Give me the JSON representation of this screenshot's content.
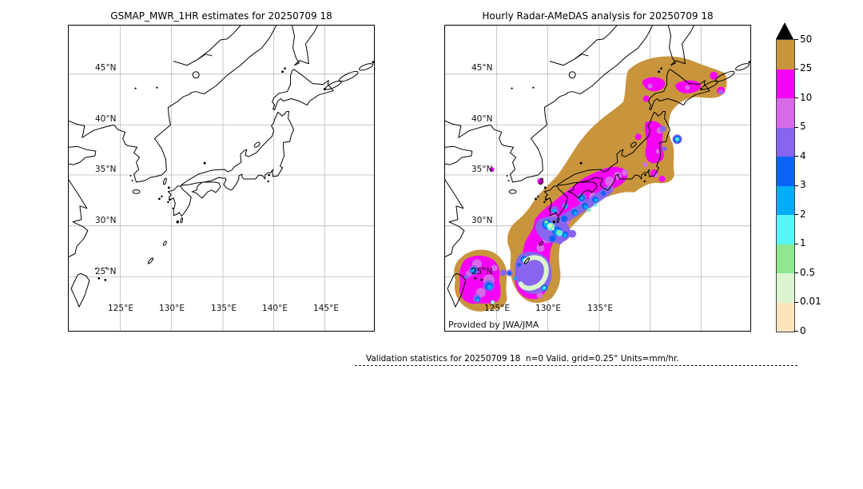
{
  "figure": {
    "background": "#ffffff",
    "grid_color": "#b9b9b9",
    "coast_color": "#000000",
    "left_panel": {
      "title": "GSMAP_MWR_1HR estimates for 20250709 18",
      "lat_labels": [
        "45°N",
        "40°N",
        "35°N",
        "30°N",
        "25°N"
      ],
      "lon_labels": [
        "125°E",
        "130°E",
        "135°E",
        "140°E",
        "145°E"
      ]
    },
    "right_panel": {
      "title": "Hourly Radar-AMeDAS analysis for 20250709 18",
      "lat_labels": [
        "45°N",
        "40°N",
        "35°N",
        "30°N",
        "25°N"
      ],
      "lon_labels": [
        "125°E",
        "130°E",
        "135°E"
      ],
      "credit": "Provided by JWA/JMA"
    },
    "colorbar": {
      "tick_labels": [
        "50",
        "25",
        "10",
        "5",
        "4",
        "3",
        "2",
        "1",
        "0.5",
        "0.01",
        "0"
      ],
      "segment_colors_top_to_bottom": [
        "#c8953d",
        "#f603f6",
        "#d76ae8",
        "#8765ee",
        "#0a62f7",
        "#00adf8",
        "#59f5f5",
        "#8fe88f",
        "#dcf5d0",
        "#fce5bd"
      ],
      "overflow_arrow_color": "#000000"
    },
    "caption": "Validation statistics for 20250709 18  n=0 Valid. grid=0.25° Units=mm/hr."
  },
  "chart_data": {
    "type": "heatmap",
    "description": "Two map panels over Japan region (approx 120-150E, 20-50N) comparing hourly precipitation fields for 2025-07-09 18 UTC",
    "panels": [
      {
        "title": "GSMAP_MWR_1HR estimates for 20250709 18",
        "field": "empty - no precipitation plotted"
      },
      {
        "title": "Hourly Radar-AMeDAS analysis for 20250709 18",
        "field": "widespread light precipitation 0-0.5 mm/hr over Hokkaido, Honshu, Kyushu; cells of 1-10 mm/hr from Shikoku southwest through Kyushu to Okinawa; magenta cores 10-25 mm/hr near 30N 129.5E and a hook-shaped 10-25 mm/hr band near 26N 128.5E; isolated cell near 39.5N 141.5E"
      }
    ],
    "colorbar_levels_mm_per_hr": [
      0,
      0.01,
      0.5,
      1,
      2,
      3,
      4,
      5,
      10,
      25,
      50
    ],
    "gridlines": {
      "lat_deg": [
        25,
        30,
        35,
        40,
        45
      ],
      "lon_deg": [
        125,
        130,
        135,
        140,
        145
      ]
    },
    "validation": {
      "n": 0,
      "grid_deg": 0.25,
      "units": "mm/hr"
    }
  }
}
